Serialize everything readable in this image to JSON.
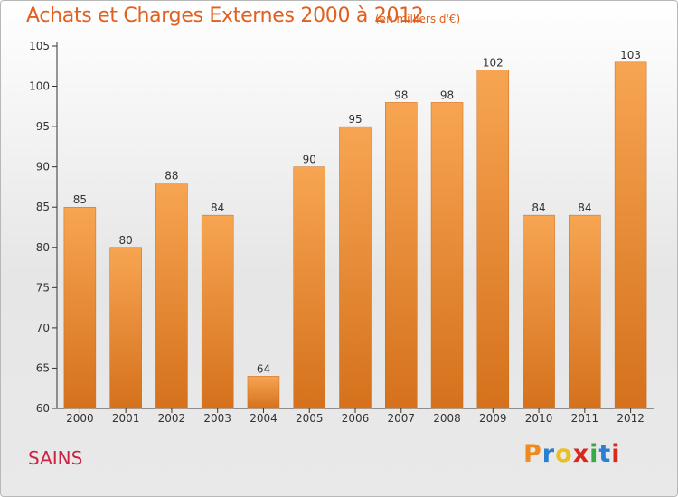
{
  "header": {
    "title": "Achats et Charges Externes 2000 à 2012",
    "subtitle": "(en milliers d'€)"
  },
  "footer": {
    "commune": "SAINS",
    "logo_letters": [
      "P",
      "r",
      "o",
      "x",
      "i",
      "t",
      "i"
    ],
    "logo_colors": [
      "#f08a1c",
      "#2a7fd4",
      "#e8c020",
      "#d9281e",
      "#3aa845",
      "#2a7fd4",
      "#d9281e"
    ]
  },
  "colors": {
    "bar_top": "#f7a552",
    "bar_bottom": "#d5711c",
    "axis": "#333333",
    "grid": "#d0d0d0"
  },
  "chart_data": {
    "type": "bar",
    "title": "Achats et Charges Externes 2000 à 2012",
    "subtitle": "(en milliers d'€)",
    "categories": [
      "2000",
      "2001",
      "2002",
      "2003",
      "2004",
      "2005",
      "2006",
      "2007",
      "2008",
      "2009",
      "2010",
      "2011",
      "2012"
    ],
    "values": [
      85,
      80,
      88,
      84,
      64,
      90,
      95,
      98,
      98,
      102,
      84,
      84,
      103
    ],
    "ylim": [
      60,
      105
    ],
    "yticks": [
      60,
      65,
      70,
      75,
      80,
      85,
      90,
      95,
      100,
      105
    ],
    "xlabel": "",
    "ylabel": "",
    "grid": false,
    "data_labels": true
  }
}
